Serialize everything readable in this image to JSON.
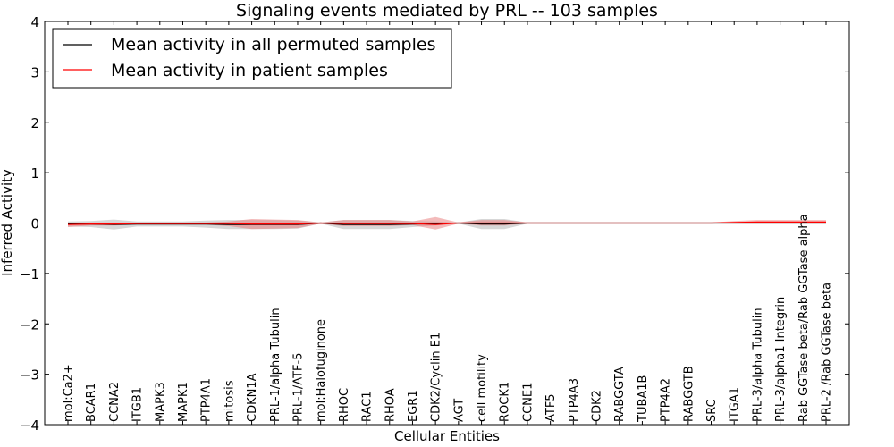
{
  "chart_data": {
    "type": "line",
    "title": "Signaling events mediated by PRL -- 103 samples",
    "xlabel": "Cellular Entities",
    "ylabel": "Inferred Activity",
    "ylim": [
      -4,
      4
    ],
    "yticks": [
      -4,
      -3,
      -2,
      -1,
      0,
      1,
      2,
      3,
      4
    ],
    "ytick_labels": [
      "−4",
      "−3",
      "−2",
      "−1",
      "0",
      "1",
      "2",
      "3",
      "4"
    ],
    "grid": false,
    "legend_position": "top-left",
    "categories": [
      "mol:Ca2+",
      "BCAR1",
      "CCNA2",
      "ITGB1",
      "MAPK3",
      "MAPK1",
      "PTP4A1",
      "mitosis",
      "CDKN1A",
      "PRL-1/alpha Tubulin",
      "PRL-1/ATF-5",
      "mol:Halofuginone",
      "RHOC",
      "RAC1",
      "RHOA",
      "EGR1",
      "CDK2/Cyclin E1",
      "AGT",
      "cell motility",
      "ROCK1",
      "CCNE1",
      "ATF5",
      "PTP4A3",
      "CDK2",
      "RABGGTA",
      "TUBA1B",
      "PTP4A2",
      "RABGGTB",
      "SRC",
      "ITGA1",
      "PRL-3/alpha Tubulin",
      "PRL-3/alpha1 Integrin",
      "Rab GGTase beta/Rab GGTase alpha",
      "PRL-2 /Rab GGTase beta"
    ],
    "series": [
      {
        "name": "Mean activity in all permuted samples",
        "color": "#000000",
        "band_color": "#b0b0b0",
        "values": [
          -0.02,
          -0.02,
          -0.03,
          -0.02,
          -0.02,
          -0.02,
          -0.02,
          -0.03,
          -0.03,
          -0.03,
          -0.03,
          0.0,
          -0.03,
          -0.03,
          -0.03,
          -0.02,
          -0.01,
          0.0,
          -0.02,
          -0.02,
          0.0,
          0.0,
          0.0,
          0.0,
          0.0,
          0.0,
          0.0,
          0.0,
          0.0,
          0.0,
          0.0,
          0.0,
          0.0,
          0.0
        ],
        "lower": [
          -0.07,
          -0.08,
          -0.13,
          -0.07,
          -0.07,
          -0.07,
          -0.09,
          -0.12,
          -0.12,
          -0.12,
          -0.11,
          -0.01,
          -0.12,
          -0.12,
          -0.12,
          -0.08,
          -0.05,
          -0.01,
          -0.12,
          -0.12,
          -0.01,
          -0.01,
          -0.01,
          -0.01,
          -0.01,
          -0.01,
          -0.01,
          -0.01,
          -0.01,
          -0.01,
          -0.01,
          -0.01,
          -0.01,
          -0.01
        ],
        "upper": [
          0.03,
          0.04,
          0.07,
          0.03,
          0.03,
          0.03,
          0.05,
          0.06,
          0.06,
          0.06,
          0.05,
          0.01,
          0.06,
          0.06,
          0.06,
          0.04,
          0.03,
          0.01,
          0.08,
          0.08,
          0.01,
          0.01,
          0.01,
          0.01,
          0.01,
          0.01,
          0.01,
          0.01,
          0.01,
          0.01,
          0.01,
          0.01,
          0.01,
          0.01
        ]
      },
      {
        "name": "Mean activity in patient samples",
        "color": "#ff0000",
        "band_color": "#e87878",
        "values": [
          -0.03,
          -0.02,
          -0.02,
          -0.01,
          -0.01,
          -0.01,
          -0.01,
          -0.01,
          -0.02,
          -0.02,
          -0.02,
          0.0,
          -0.01,
          -0.01,
          -0.01,
          -0.01,
          -0.03,
          0.0,
          0.0,
          0.0,
          0.0,
          0.0,
          0.0,
          0.0,
          0.0,
          0.0,
          0.0,
          0.0,
          0.0,
          0.01,
          0.02,
          0.02,
          0.02,
          0.02
        ],
        "lower": [
          -0.08,
          -0.05,
          -0.05,
          -0.03,
          -0.03,
          -0.03,
          -0.03,
          -0.06,
          -0.12,
          -0.11,
          -0.1,
          -0.01,
          -0.06,
          -0.06,
          -0.06,
          -0.04,
          -0.13,
          -0.01,
          -0.05,
          -0.05,
          -0.01,
          -0.01,
          -0.01,
          -0.01,
          -0.01,
          -0.01,
          -0.01,
          -0.01,
          -0.01,
          -0.01,
          -0.01,
          -0.01,
          -0.01,
          -0.01
        ],
        "upper": [
          0.0,
          0.01,
          0.01,
          0.01,
          0.01,
          0.01,
          0.01,
          0.03,
          0.08,
          0.07,
          0.06,
          0.01,
          0.06,
          0.06,
          0.06,
          0.03,
          0.12,
          0.01,
          0.06,
          0.06,
          0.01,
          0.01,
          0.01,
          0.01,
          0.01,
          0.01,
          0.01,
          0.01,
          0.01,
          0.04,
          0.06,
          0.06,
          0.06,
          0.06
        ]
      }
    ]
  }
}
